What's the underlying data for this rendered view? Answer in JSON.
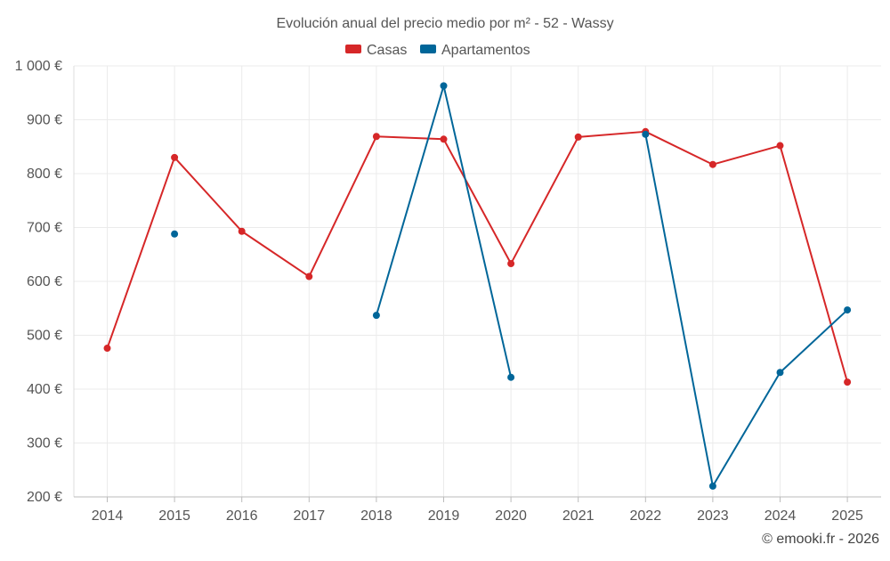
{
  "chart_data": {
    "type": "line",
    "title": "Evolución anual del precio medio por m² - 52 - Wassy",
    "categories": [
      "2014",
      "2015",
      "2016",
      "2017",
      "2018",
      "2019",
      "2020",
      "2021",
      "2022",
      "2023",
      "2024",
      "2025"
    ],
    "series": [
      {
        "name": "Casas",
        "color": "#d62728",
        "values": [
          476,
          830,
          693,
          609,
          869,
          864,
          633,
          868,
          878,
          817,
          852,
          413
        ]
      },
      {
        "name": "Apartamentos",
        "color": "#006699",
        "values": [
          null,
          688,
          null,
          null,
          537,
          963,
          422,
          null,
          873,
          220,
          431,
          547
        ]
      }
    ],
    "ylim": [
      200,
      1000
    ],
    "yticks": [
      200,
      300,
      400,
      500,
      600,
      700,
      800,
      900,
      1000
    ],
    "ytick_labels": [
      "200 €",
      "300 €",
      "400 €",
      "500 €",
      "600 €",
      "700 €",
      "800 €",
      "900 €",
      "1 000 €"
    ],
    "xlabel": "",
    "ylabel": "",
    "grid": true,
    "legend_position": "top-center",
    "credit": "© emooki.fr - 2026"
  }
}
